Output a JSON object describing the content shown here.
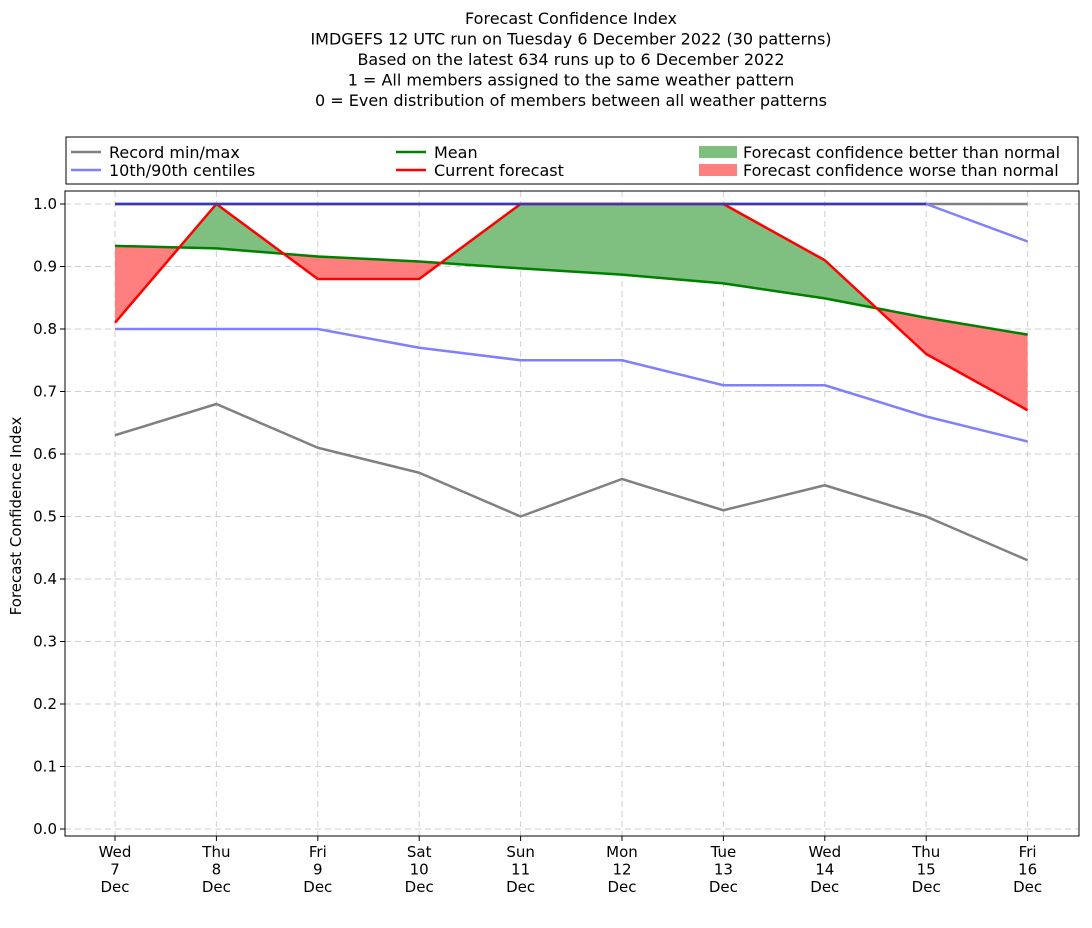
{
  "chart_data": {
    "type": "line",
    "title_lines": [
      "Forecast Confidence Index",
      "IMDGEFS 12 UTC run on Tuesday 6 December 2022 (30 patterns)",
      "Based on the latest 634 runs up to 6 December 2022",
      "1 = All members assigned to the same weather pattern",
      "0 = Even distribution of members between all weather patterns"
    ],
    "ylabel": "Forecast Confidence Index",
    "xlabel": "",
    "ylim": [
      0,
      1
    ],
    "yticks": [
      0.0,
      0.1,
      0.2,
      0.3,
      0.4,
      0.5,
      0.6,
      0.7,
      0.8,
      0.9,
      1.0
    ],
    "ytick_labels": [
      "0.0",
      "0.1",
      "0.2",
      "0.3",
      "0.4",
      "0.5",
      "0.6",
      "0.7",
      "0.8",
      "0.9",
      "1.0"
    ],
    "categories": [
      [
        "Wed",
        "7",
        "Dec"
      ],
      [
        "Thu",
        "8",
        "Dec"
      ],
      [
        "Fri",
        "9",
        "Dec"
      ],
      [
        "Sat",
        "10",
        "Dec"
      ],
      [
        "Sun",
        "11",
        "Dec"
      ],
      [
        "Mon",
        "12",
        "Dec"
      ],
      [
        "Tue",
        "13",
        "Dec"
      ],
      [
        "Wed",
        "14",
        "Dec"
      ],
      [
        "Thu",
        "15",
        "Dec"
      ],
      [
        "Fri",
        "16",
        "Dec"
      ]
    ],
    "grid": true,
    "legend_position": "top",
    "series": [
      {
        "key": "record_max",
        "legend": "Record min/max",
        "color": "#808080",
        "values": [
          1.0,
          1.0,
          1.0,
          1.0,
          1.0,
          1.0,
          1.0,
          1.0,
          1.0,
          1.0
        ]
      },
      {
        "key": "record_min",
        "legend": "",
        "color": "#808080",
        "values": [
          0.63,
          0.68,
          0.61,
          0.57,
          0.5,
          0.56,
          0.51,
          0.55,
          0.5,
          0.43
        ]
      },
      {
        "key": "p90",
        "legend": "10th/90th centiles",
        "color": "#8080ff",
        "values": [
          1.0,
          1.0,
          1.0,
          1.0,
          1.0,
          1.0,
          1.0,
          1.0,
          1.0,
          0.94
        ]
      },
      {
        "key": "p10",
        "legend": "",
        "color": "#8080ff",
        "values": [
          0.8,
          0.8,
          0.8,
          0.77,
          0.75,
          0.75,
          0.71,
          0.71,
          0.66,
          0.62
        ]
      },
      {
        "key": "mean",
        "legend": "Mean",
        "color": "#008000",
        "values": [
          0.933,
          0.929,
          0.916,
          0.908,
          0.897,
          0.887,
          0.873,
          0.849,
          0.818,
          0.791
        ]
      },
      {
        "key": "current",
        "legend": "Current forecast",
        "color": "#ff0000",
        "values": [
          0.81,
          1.0,
          0.88,
          0.88,
          1.0,
          1.0,
          1.0,
          0.91,
          0.76,
          0.67
        ]
      }
    ],
    "fills": [
      {
        "legend": "Forecast confidence better than normal",
        "color": "#7fbf7f"
      },
      {
        "legend": "Forecast confidence worse than normal",
        "color": "#ff7f7f"
      }
    ]
  }
}
